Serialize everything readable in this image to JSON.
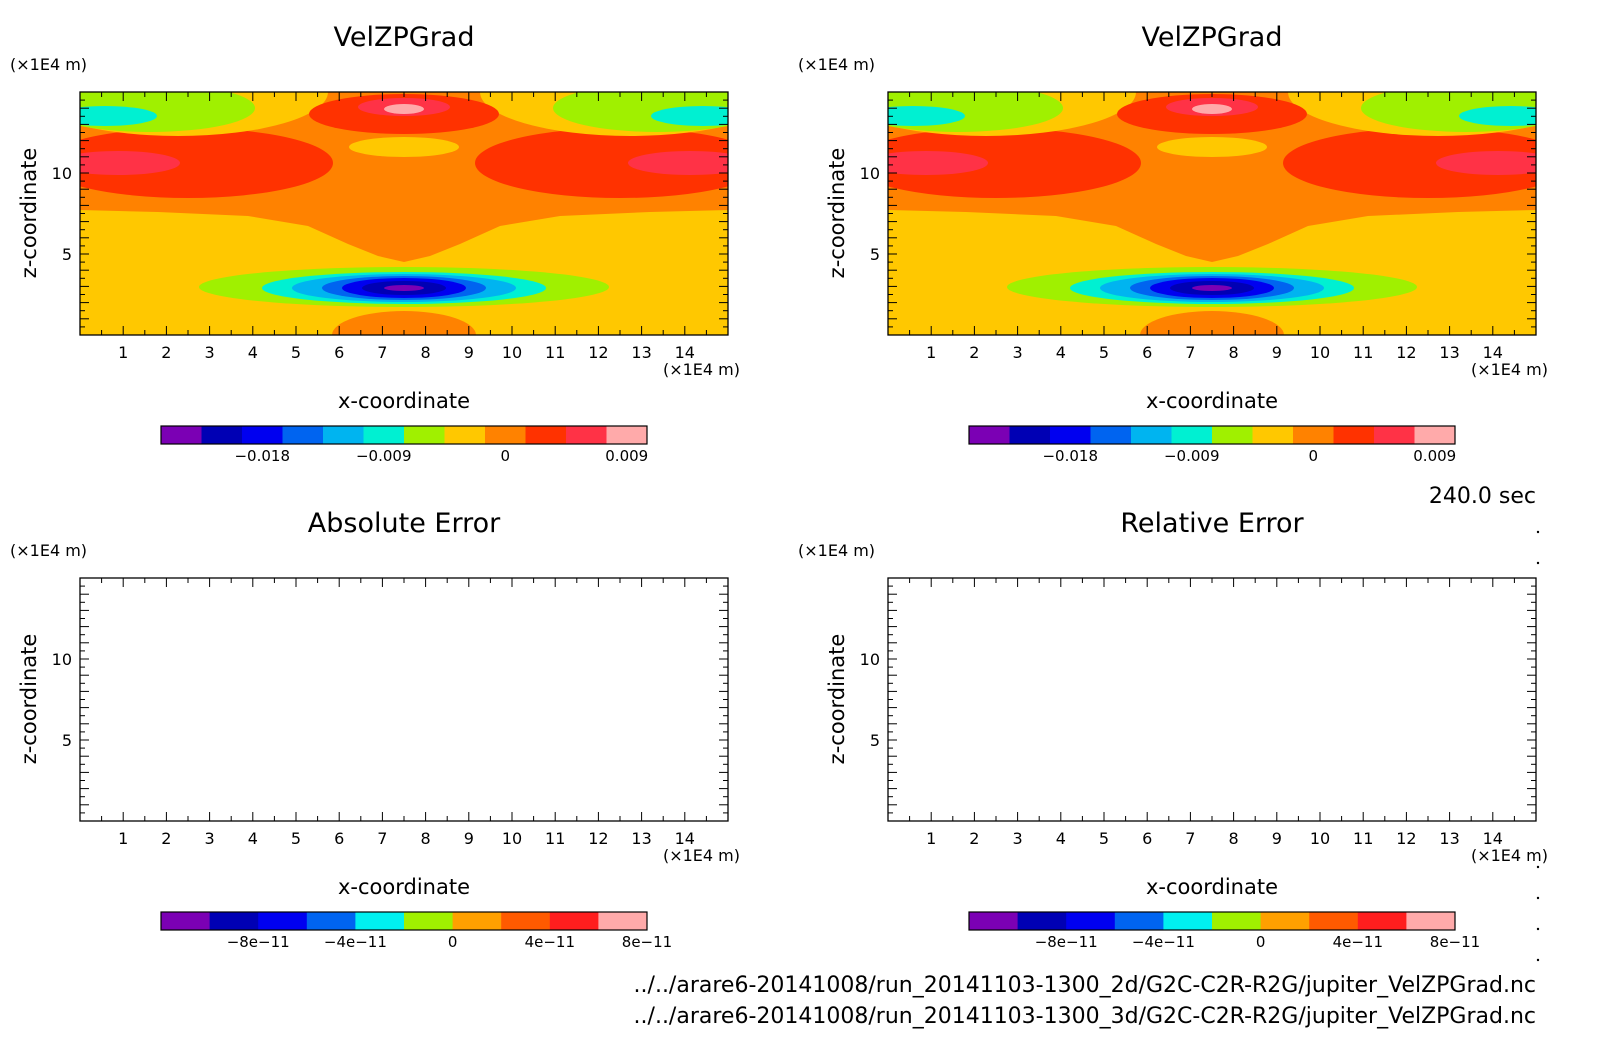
{
  "timestamp": "240.0 sec",
  "files": [
    "../../arare6-20141008/run_20141103-1300_2d/G2C-C2R-R2G/jupiter_VelZPGrad.nc",
    "../../arare6-20141008/run_20141103-1300_3d/G2C-C2R-R2G/jupiter_VelZPGrad.nc"
  ],
  "colors": {
    "velz_levels": [
      "#7b00b4",
      "#0000b4",
      "#0000f0",
      "#0064f0",
      "#00b4f0",
      "#00f0d2",
      "#a0f000",
      "#ffc800",
      "#ff8200",
      "#ff3200",
      "#ff3246",
      "#ffaaaa"
    ],
    "error_levels": [
      "#7b00b4",
      "#0000b4",
      "#0000f0",
      "#0064f0",
      "#00f0f0",
      "#a0f000",
      "#ffa000",
      "#ff5a00",
      "#ff1e1e",
      "#ffaaaa"
    ]
  },
  "chart_data": [
    {
      "type": "heatmap",
      "title": "VelZPGrad",
      "xlabel": "x-coordinate",
      "ylabel": "z-coordinate",
      "x_unit": "(×1E4 m)",
      "y_unit": "(×1E4 m)",
      "x_ticks": [
        "1",
        "2",
        "3",
        "4",
        "5",
        "6",
        "7",
        "8",
        "9",
        "10",
        "11",
        "12",
        "13",
        "14"
      ],
      "y_ticks": [
        "5",
        "10"
      ],
      "xlim": [
        0,
        15
      ],
      "ylim": [
        0,
        15
      ],
      "colorbar": {
        "boundaries": [
          -0.0255,
          -0.0225,
          -0.0195,
          -0.0165,
          -0.0135,
          -0.0105,
          -0.0075,
          -0.0045,
          -0.0015,
          0.0015,
          0.0045,
          0.0075,
          0.0105
        ],
        "tick_values": [
          -0.018,
          -0.009,
          0,
          0.009
        ],
        "tick_labels": [
          "−0.018",
          "−0.009",
          "0",
          "0.009"
        ]
      }
    },
    {
      "type": "heatmap",
      "title": "VelZPGrad",
      "xlabel": "x-coordinate",
      "ylabel": "z-coordinate",
      "x_unit": "(×1E4 m)",
      "y_unit": "(×1E4 m)",
      "x_ticks": [
        "1",
        "2",
        "3",
        "4",
        "5",
        "6",
        "7",
        "8",
        "9",
        "10",
        "11",
        "12",
        "13",
        "14"
      ],
      "y_ticks": [
        "5",
        "10"
      ],
      "xlim": [
        0,
        15
      ],
      "ylim": [
        0,
        15
      ],
      "colorbar": {
        "boundaries": [
          -0.0255,
          -0.0225,
          -0.0195,
          -0.0165,
          -0.0135,
          -0.0105,
          -0.0075,
          -0.0045,
          -0.0015,
          0.0015,
          0.0045,
          0.0075,
          0.0105
        ],
        "tick_values": [
          -0.018,
          -0.009,
          0,
          0.009
        ],
        "tick_labels": [
          "−0.018",
          "−0.009",
          "0",
          "0.009"
        ]
      }
    },
    {
      "type": "heatmap",
      "title": "Absolute Error",
      "xlabel": "x-coordinate",
      "ylabel": "z-coordinate",
      "x_unit": "(×1E4 m)",
      "y_unit": "(×1E4 m)",
      "x_ticks": [
        "1",
        "2",
        "3",
        "4",
        "5",
        "6",
        "7",
        "8",
        "9",
        "10",
        "11",
        "12",
        "13",
        "14"
      ],
      "y_ticks": [
        "5",
        "10"
      ],
      "xlim": [
        0,
        15
      ],
      "ylim": [
        0,
        15
      ],
      "colorbar": {
        "boundaries": [
          -1.2e-10,
          -1e-10,
          -8e-11,
          -6e-11,
          -4e-11,
          -2e-11,
          0,
          2e-11,
          4e-11,
          6e-11,
          8e-11
        ],
        "tick_values": [
          -8e-11,
          -4e-11,
          0,
          4e-11,
          8e-11
        ],
        "tick_labels": [
          "−8e−11",
          "−4e−11",
          "0",
          "4e−11",
          "8e−11"
        ]
      }
    },
    {
      "type": "heatmap",
      "title": "Relative Error",
      "xlabel": "x-coordinate",
      "ylabel": "z-coordinate",
      "x_unit": "(×1E4 m)",
      "y_unit": "(×1E4 m)",
      "x_ticks": [
        "1",
        "2",
        "3",
        "4",
        "5",
        "6",
        "7",
        "8",
        "9",
        "10",
        "11",
        "12",
        "13",
        "14"
      ],
      "y_ticks": [
        "5",
        "10"
      ],
      "xlim": [
        0,
        15
      ],
      "ylim": [
        0,
        15
      ],
      "colorbar": {
        "boundaries": [
          -1.2e-10,
          -1e-10,
          -8e-11,
          -6e-11,
          -4e-11,
          -2e-11,
          0,
          2e-11,
          4e-11,
          6e-11,
          8e-11
        ],
        "tick_values": [
          -8e-11,
          -4e-11,
          0,
          4e-11,
          8e-11
        ],
        "tick_labels": [
          "−8e−11",
          "−4e−11",
          "0",
          "4e−11",
          "8e−11"
        ]
      }
    }
  ]
}
